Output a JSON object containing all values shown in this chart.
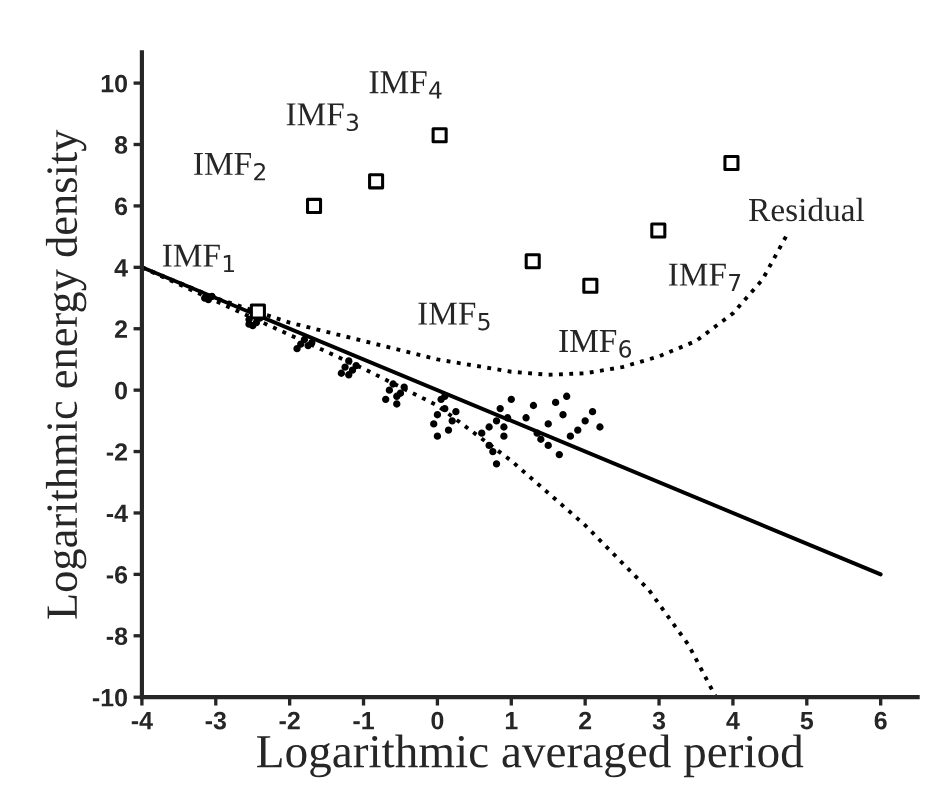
{
  "chart_data": {
    "type": "scatter",
    "xlabel": "Logarithmic averaged period",
    "ylabel": "Logarithmic energy density",
    "xlim": [
      -4,
      6.5
    ],
    "ylim": [
      -10,
      11
    ],
    "xticks": [
      -4,
      -3,
      -2,
      -1,
      0,
      1,
      2,
      3,
      4,
      5,
      6
    ],
    "yticks": [
      -10,
      -8,
      -6,
      -4,
      -2,
      0,
      2,
      4,
      6,
      8,
      10
    ],
    "grid": false,
    "legend": false,
    "series": [
      {
        "marker": "circle",
        "color": "#000000",
        "x": [
          -3.15,
          -3.05,
          -3.1,
          -2.55,
          -2.45,
          -2.5,
          -2.4,
          -2.55,
          -1.85,
          -1.75,
          -1.8,
          -1.7,
          -1.9,
          -1.25,
          -1.15,
          -1.2,
          -1.1,
          -1.3,
          -1.2,
          -0.65,
          -0.55,
          -0.6,
          -0.5,
          -0.7,
          -0.55,
          -0.45,
          0.0,
          0.1,
          0.2,
          0.05,
          0.15,
          -0.05,
          0.1,
          0.25,
          0.0,
          0.7,
          0.8,
          0.9,
          0.75,
          0.85,
          0.6,
          0.95,
          0.8,
          0.7,
          0.9,
          1.0,
          1.3,
          1.5,
          1.7,
          1.9,
          1.4,
          1.6,
          1.8,
          2.0,
          2.2,
          1.2,
          1.5,
          1.75,
          2.1,
          1.35,
          1.65
        ],
        "values": [
          3.0,
          3.05,
          2.95,
          2.3,
          2.2,
          2.1,
          2.35,
          2.15,
          1.5,
          1.45,
          1.65,
          1.55,
          1.35,
          0.75,
          0.65,
          0.95,
          0.8,
          0.55,
          0.5,
          0.0,
          -0.2,
          0.2,
          -0.1,
          -0.3,
          -0.45,
          0.1,
          -0.8,
          -0.6,
          -1.0,
          -0.3,
          -1.3,
          -1.1,
          -0.2,
          -0.7,
          -1.5,
          -1.2,
          -1.0,
          -1.5,
          -2.0,
          -0.6,
          -1.4,
          -0.9,
          -2.4,
          -1.8,
          -1.2,
          -0.3,
          -0.5,
          -1.1,
          -0.8,
          -1.3,
          -1.6,
          -0.4,
          -1.5,
          -1.0,
          -1.2,
          -0.9,
          -1.8,
          -0.2,
          -0.7,
          -1.4,
          -2.1
        ]
      },
      {
        "type": "line",
        "line_style": "solid",
        "color": "#000000",
        "x": [
          -4,
          6
        ],
        "values": [
          4,
          -6
        ]
      },
      {
        "type": "line",
        "line_style": "dotted",
        "color": "#000000",
        "x": [
          -4,
          -3,
          -2,
          -1,
          0,
          1,
          1.5,
          2,
          2.5,
          3,
          3.5,
          4,
          4.4,
          4.74
        ],
        "values": [
          4,
          3.0,
          2.2,
          1.6,
          1.0,
          0.6,
          0.5,
          0.55,
          0.75,
          1.1,
          1.6,
          2.5,
          3.6,
          5.1
        ]
      },
      {
        "type": "line",
        "line_style": "dotted",
        "color": "#000000",
        "x": [
          -4,
          -3,
          -2,
          -1,
          0,
          1,
          2,
          2.86,
          3.4,
          3.77
        ],
        "values": [
          4,
          2.9,
          1.8,
          0.7,
          -0.5,
          -2.3,
          -4.4,
          -6.5,
          -8.3,
          -10
        ]
      },
      {
        "type": "scatter",
        "marker": "square",
        "color": "#000000",
        "x": [
          -2.43,
          -1.67,
          -0.83,
          0.03,
          1.29,
          2.07,
          2.99,
          3.98
        ],
        "values": [
          2.56,
          6.0,
          6.8,
          8.3,
          4.2,
          3.4,
          5.2,
          7.4
        ]
      }
    ],
    "annotations": [
      {
        "text": "IMF$_{1}$",
        "x": -2.43,
        "y": 2.56
      },
      {
        "text": "IMF$_{2}$",
        "x": -1.67,
        "y": 6.0
      },
      {
        "text": "IMF$_{3}$",
        "x": -0.83,
        "y": 6.8
      },
      {
        "text": "IMF$_{4}$",
        "x": 0.03,
        "y": 8.3
      },
      {
        "text": "IMF$_{5}$",
        "x": 1.29,
        "y": 4.2
      },
      {
        "text": "IMF$_{6}$",
        "x": 2.07,
        "y": 3.4
      },
      {
        "text": "IMF$_{7}$",
        "x": 2.99,
        "y": 5.2
      },
      {
        "text": "Residual",
        "x": 3.98,
        "y": 7.4
      }
    ]
  }
}
